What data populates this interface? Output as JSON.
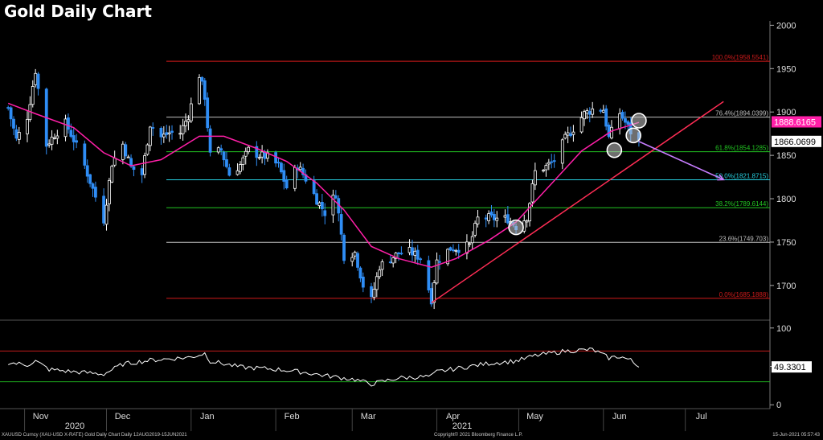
{
  "title": "Gold Daily Chart",
  "footer": {
    "left": "XAUUSD Curncy (XAU-USD X-RATE) Gold Daily Chart  Daily 12AUG2019-15JUN2021",
    "center": "Copyright© 2021 Bloomberg Finance L.P.",
    "right": "15-Jun-2021 05:57:43"
  },
  "colors": {
    "background": "#000000",
    "candle_up": "#ffffff",
    "candle_down": "#2f8df5",
    "ma": "#ff1fa8",
    "trendline": "#ff2d55",
    "arrow": "#c77dff",
    "fib_100": "#d11b1b",
    "fib_76": "#bfbfbf",
    "fib_61": "#22c422",
    "fib_50": "#27d0e0",
    "fib_38": "#22c422",
    "fib_23": "#bfbfbf",
    "fib_0": "#d11b1b",
    "rsi_line": "#ffffff",
    "rsi_upper": "#c21b1b",
    "rsi_lower": "#1fb51f"
  },
  "chart_data": [
    {
      "type": "candlestick",
      "title": "Gold Daily Chart",
      "x_months": [
        "Nov",
        "Dec",
        "Jan",
        "Feb",
        "Mar",
        "Apr",
        "May",
        "Jun",
        "Jul"
      ],
      "x_years": [
        "2020",
        "2021"
      ],
      "y_ticks": [
        1700,
        1750,
        1800,
        1850,
        1900,
        1950,
        2000
      ],
      "ylim": [
        1660,
        2005
      ],
      "fibonacci_levels": [
        {
          "label": "100.0%(1958.5541)",
          "value": 1958.5541
        },
        {
          "label": "76.4%(1894.0399)",
          "value": 1894.0399
        },
        {
          "label": "61.8%(1854.1285)",
          "value": 1854.1285
        },
        {
          "label": "50.0%(1821.8715)",
          "value": 1821.8715
        },
        {
          "label": "38.2%(1789.6144)",
          "value": 1789.6144
        },
        {
          "label": "23.6%(1749.703)",
          "value": 1749.703
        },
        {
          "label": "0.0%(1685.1888)",
          "value": 1685.1888
        }
      ],
      "price_tags": [
        {
          "label": "1888.6165",
          "value": 1888.6165
        },
        {
          "label": "1866.0699",
          "value": 1866.0699
        }
      ],
      "series": [
        {
          "name": "",
          "kind": "close",
          "points": [
            [
              "2020-10-26",
              1905
            ],
            [
              "2020-10-29",
              1868
            ],
            [
              "2020-11-02",
              1895
            ],
            [
              "2020-11-05",
              1948
            ],
            [
              "2020-11-09",
              1862
            ],
            [
              "2020-11-12",
              1874
            ],
            [
              "2020-11-16",
              1887
            ],
            [
              "2020-11-19",
              1868
            ],
            [
              "2020-11-23",
              1838
            ],
            [
              "2020-11-26",
              1811
            ],
            [
              "2020-11-30",
              1776
            ],
            [
              "2020-12-03",
              1841
            ],
            [
              "2020-12-07",
              1863
            ],
            [
              "2020-12-10",
              1836
            ],
            [
              "2020-12-14",
              1828
            ],
            [
              "2020-12-17",
              1886
            ],
            [
              "2020-12-21",
              1871
            ],
            [
              "2020-12-24",
              1876
            ],
            [
              "2020-12-28",
              1876
            ],
            [
              "2020-12-31",
              1896
            ],
            [
              "2021-01-04",
              1943
            ],
            [
              "2021-01-06",
              1918
            ],
            [
              "2021-01-08",
              1850
            ],
            [
              "2021-01-12",
              1856
            ],
            [
              "2021-01-15",
              1828
            ],
            [
              "2021-01-19",
              1839
            ],
            [
              "2021-01-22",
              1856
            ],
            [
              "2021-01-26",
              1850
            ],
            [
              "2021-01-29",
              1848
            ],
            [
              "2021-02-02",
              1838
            ],
            [
              "2021-02-05",
              1813
            ],
            [
              "2021-02-09",
              1838
            ],
            [
              "2021-02-12",
              1823
            ],
            [
              "2021-02-16",
              1799
            ],
            [
              "2021-02-19",
              1784
            ],
            [
              "2021-02-23",
              1806
            ],
            [
              "2021-02-26",
              1734
            ],
            [
              "2021-03-02",
              1738
            ],
            [
              "2021-03-05",
              1700
            ],
            [
              "2021-03-08",
              1683
            ],
            [
              "2021-03-11",
              1722
            ],
            [
              "2021-03-15",
              1731
            ],
            [
              "2021-03-18",
              1737
            ],
            [
              "2021-03-22",
              1739
            ],
            [
              "2021-03-26",
              1732
            ],
            [
              "2021-03-30",
              1684
            ],
            [
              "2021-04-01",
              1728
            ],
            [
              "2021-04-06",
              1743
            ],
            [
              "2021-04-09",
              1743
            ],
            [
              "2021-04-13",
              1746
            ],
            [
              "2021-04-16",
              1777
            ],
            [
              "2021-04-20",
              1778
            ],
            [
              "2021-04-23",
              1777
            ],
            [
              "2021-04-27",
              1777
            ],
            [
              "2021-04-30",
              1768
            ],
            [
              "2021-05-04",
              1779
            ],
            [
              "2021-05-07",
              1831
            ],
            [
              "2021-05-11",
              1837
            ],
            [
              "2021-05-14",
              1844
            ],
            [
              "2021-05-18",
              1869
            ],
            [
              "2021-05-21",
              1881
            ],
            [
              "2021-05-25",
              1898
            ],
            [
              "2021-05-28",
              1903
            ],
            [
              "2021-06-01",
              1903
            ],
            [
              "2021-06-03",
              1870
            ],
            [
              "2021-06-07",
              1899
            ],
            [
              "2021-06-09",
              1888
            ],
            [
              "2021-06-11",
              1877
            ],
            [
              "2021-06-14",
              1866
            ]
          ]
        },
        {
          "name": "",
          "kind": "moving_average",
          "points": [
            [
              "2020-10-26",
              1910
            ],
            [
              "2020-11-05",
              1898
            ],
            [
              "2020-11-19",
              1882
            ],
            [
              "2020-11-30",
              1853
            ],
            [
              "2020-12-10",
              1838
            ],
            [
              "2020-12-21",
              1845
            ],
            [
              "2021-01-04",
              1872
            ],
            [
              "2021-01-13",
              1872
            ],
            [
              "2021-01-25",
              1858
            ],
            [
              "2021-02-05",
              1843
            ],
            [
              "2021-02-16",
              1818
            ],
            [
              "2021-02-26",
              1787
            ],
            [
              "2021-03-08",
              1745
            ],
            [
              "2021-03-18",
              1731
            ],
            [
              "2021-03-30",
              1721
            ],
            [
              "2021-04-08",
              1731
            ],
            [
              "2021-04-20",
              1752
            ],
            [
              "2021-04-30",
              1773
            ],
            [
              "2021-05-12",
              1814
            ],
            [
              "2021-05-24",
              1855
            ],
            [
              "2021-06-04",
              1878
            ],
            [
              "2021-06-14",
              1888
            ]
          ]
        },
        {
          "name": "",
          "kind": "trendline",
          "points": [
            [
              "2021-03-30",
              1680
            ],
            [
              "2021-07-15",
              1912
            ]
          ]
        },
        {
          "name": "",
          "kind": "arrow",
          "points": [
            [
              "2021-06-14",
              1866
            ],
            [
              "2021-07-15",
              1822
            ]
          ]
        }
      ],
      "highlights": [
        {
          "date": "2021-04-30",
          "value": 1767
        },
        {
          "date": "2021-06-05",
          "value": 1856
        },
        {
          "date": "2021-06-12",
          "value": 1873
        },
        {
          "date": "2021-06-14",
          "value": 1890
        }
      ]
    },
    {
      "type": "line",
      "y_ticks": [
        0,
        50,
        100
      ],
      "ylim": [
        -5,
        105
      ],
      "bands": [
        70,
        30
      ],
      "last_value_label": "49.3301",
      "last_value": 49.3301,
      "series": [
        {
          "name": "",
          "points": [
            [
              "2020-10-26",
              55
            ],
            [
              "2020-11-02",
              52
            ],
            [
              "2020-11-05",
              57
            ],
            [
              "2020-11-10",
              46
            ],
            [
              "2020-11-19",
              43
            ],
            [
              "2020-11-30",
              40
            ],
            [
              "2020-12-07",
              53
            ],
            [
              "2020-12-17",
              58
            ],
            [
              "2021-01-01",
              62
            ],
            [
              "2021-01-06",
              67
            ],
            [
              "2021-01-08",
              57
            ],
            [
              "2021-01-19",
              49
            ],
            [
              "2021-01-29",
              47
            ],
            [
              "2021-02-05",
              45
            ],
            [
              "2021-02-12",
              42
            ],
            [
              "2021-02-19",
              38
            ],
            [
              "2021-03-02",
              33
            ],
            [
              "2021-03-08",
              27
            ],
            [
              "2021-03-18",
              35
            ],
            [
              "2021-03-30",
              37
            ],
            [
              "2021-04-01",
              43
            ],
            [
              "2021-04-13",
              50
            ],
            [
              "2021-04-20",
              54
            ],
            [
              "2021-04-30",
              57
            ],
            [
              "2021-05-07",
              64
            ],
            [
              "2021-05-18",
              70
            ],
            [
              "2021-05-28",
              72
            ],
            [
              "2021-06-03",
              61
            ],
            [
              "2021-06-07",
              63
            ],
            [
              "2021-06-11",
              58
            ],
            [
              "2021-06-14",
              49
            ]
          ]
        }
      ]
    }
  ]
}
